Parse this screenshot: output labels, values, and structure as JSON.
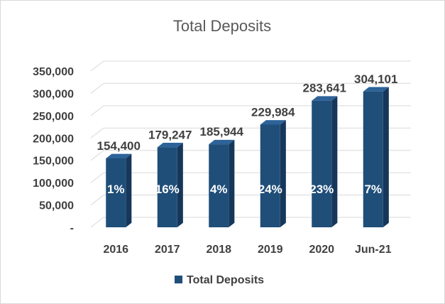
{
  "chart_data": {
    "type": "bar",
    "title": "Total Deposits",
    "categories": [
      "2016",
      "2017",
      "2018",
      "2019",
      "2020",
      "Jun-21"
    ],
    "series": [
      {
        "name": "Total Deposits",
        "values": [
          154400,
          179247,
          185944,
          229984,
          283641,
          304101
        ],
        "value_labels": [
          "154,400",
          "179,247",
          "185,944",
          "229,984",
          "283,641",
          "304,101"
        ],
        "growth_labels": [
          "1%",
          "16%",
          "4%",
          "24%",
          "23%",
          "7%"
        ]
      }
    ],
    "y_ticks": [
      "-",
      "50,000",
      "100,000",
      "150,000",
      "200,000",
      "250,000",
      "300,000",
      "350,000"
    ],
    "ylim": [
      0,
      350000
    ],
    "grid": true,
    "legend": "bottom",
    "style": "3d-column",
    "colors": {
      "bar_front": "#1f4e79",
      "bar_side": "#16375a",
      "bar_top": "#2e6399",
      "grid": "#d9d9d9"
    }
  }
}
